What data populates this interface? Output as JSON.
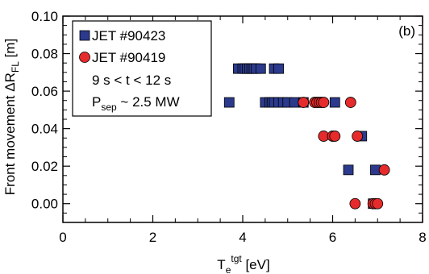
{
  "chart_data": {
    "type": "scatter",
    "panel_label": "(b)",
    "xlabel": {
      "main": "T",
      "sub": "e",
      "sup": "tgt",
      "unit": " [eV]"
    },
    "ylabel": {
      "main": "Front movement ΔR",
      "sub": "FL",
      "unit": " [m]"
    },
    "xlim": [
      0,
      8
    ],
    "ylim": [
      -0.01,
      0.1
    ],
    "x_ticks": [
      0,
      2,
      4,
      6,
      8
    ],
    "x_tick_labels": [
      "0",
      "2",
      "4",
      "6",
      "8"
    ],
    "y_ticks": [
      0.0,
      0.02,
      0.04,
      0.06,
      0.08,
      0.1
    ],
    "y_tick_labels": [
      "0.00",
      "0.02",
      "0.04",
      "0.06",
      "0.08",
      "0.10"
    ],
    "legend": {
      "placement": "top-left",
      "series_labels": [
        "JET #90423",
        "JET #90419"
      ],
      "conditions": [
        {
          "text": "9 s < t < 12 s"
        },
        {
          "main": "P",
          "sub": "sep",
          "rest": " ~ 2.5 MW"
        }
      ]
    },
    "series": [
      {
        "name": "JET #90423",
        "marker": "square",
        "color": "#2b3a8c",
        "points": [
          [
            3.9,
            0.072
          ],
          [
            4.0,
            0.072
          ],
          [
            4.05,
            0.072
          ],
          [
            4.1,
            0.072
          ],
          [
            4.15,
            0.072
          ],
          [
            4.2,
            0.072
          ],
          [
            4.25,
            0.072
          ],
          [
            4.3,
            0.072
          ],
          [
            4.4,
            0.072
          ],
          [
            4.7,
            0.072
          ],
          [
            4.8,
            0.072
          ],
          [
            3.7,
            0.054
          ],
          [
            4.5,
            0.054
          ],
          [
            4.6,
            0.054
          ],
          [
            4.65,
            0.054
          ],
          [
            4.7,
            0.054
          ],
          [
            4.8,
            0.054
          ],
          [
            4.9,
            0.054
          ],
          [
            5.0,
            0.054
          ],
          [
            5.15,
            0.054
          ],
          [
            5.35,
            0.054
          ],
          [
            5.7,
            0.054
          ],
          [
            6.05,
            0.054
          ],
          [
            6.65,
            0.036
          ],
          [
            6.35,
            0.018
          ],
          [
            6.95,
            0.018
          ],
          [
            6.9,
            0.0
          ]
        ]
      },
      {
        "name": "JET #90419",
        "marker": "circle",
        "color": "#e52b2b",
        "points": [
          [
            5.35,
            0.054
          ],
          [
            5.6,
            0.054
          ],
          [
            5.65,
            0.054
          ],
          [
            5.7,
            0.054
          ],
          [
            5.75,
            0.054
          ],
          [
            5.8,
            0.054
          ],
          [
            6.4,
            0.054
          ],
          [
            5.8,
            0.036
          ],
          [
            6.0,
            0.036
          ],
          [
            6.05,
            0.036
          ],
          [
            6.55,
            0.036
          ],
          [
            7.15,
            0.018
          ],
          [
            6.5,
            0.0
          ],
          [
            6.9,
            0.0
          ],
          [
            6.95,
            0.0
          ],
          [
            7.0,
            0.0
          ]
        ]
      }
    ]
  }
}
